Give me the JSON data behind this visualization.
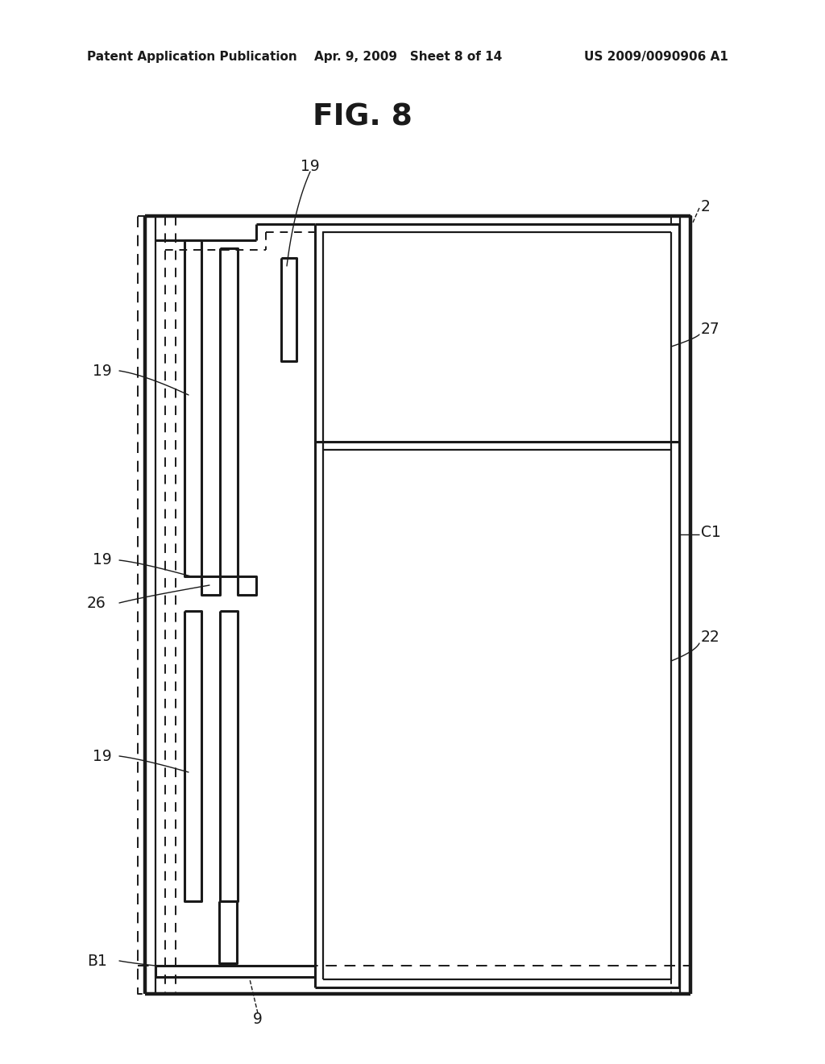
{
  "bg_color": "#ffffff",
  "line_color": "#1a1a1a",
  "header_left": "Patent Application Publication",
  "header_center": "Apr. 9, 2009   Sheet 8 of 14",
  "header_right": "US 2009/0090906 A1",
  "title": "FIG. 8",
  "lw_dash": 1.4,
  "lw_thin": 1.6,
  "lw_med": 2.2,
  "lw_thick": 3.2,
  "label_fontsize": 13.5,
  "annot_curve_color": "#555555"
}
